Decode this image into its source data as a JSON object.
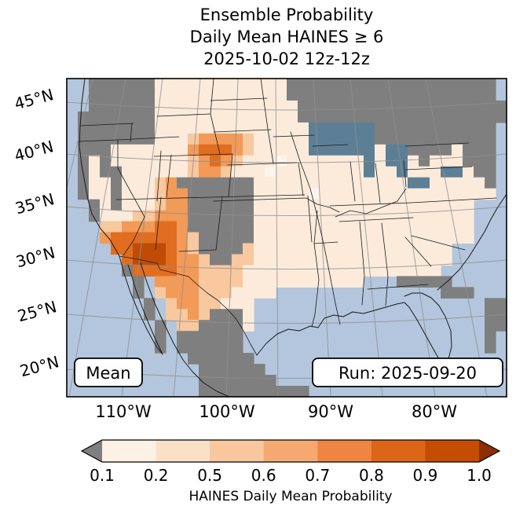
{
  "title": {
    "line1": "Ensemble Probability",
    "line2": "Daily Mean HAINES ≥ 6",
    "line3": "2025-10-02 12z-12z"
  },
  "map": {
    "mean_label": "Mean",
    "run_label": "Run: 2025-09-20",
    "lat_ticks": [
      "45°N",
      "40°N",
      "35°N",
      "30°N",
      "25°N",
      "20°N"
    ],
    "lon_ticks": [
      "110°W",
      "100°W",
      "90°W",
      "80°W"
    ]
  },
  "colorbar": {
    "label": "HAINES Daily Mean Probability",
    "tick_labels": [
      "0.1",
      "0.2",
      "0.5",
      "0.6",
      "0.7",
      "0.8",
      "0.9",
      "1.0"
    ],
    "segment_colors": [
      "#fdf0e4",
      "#fbe0c8",
      "#f8c79e",
      "#f5a971",
      "#ee8541",
      "#dd6517",
      "#c44c03"
    ],
    "under_color": "#7f7f7f",
    "over_color": "#8c2d04"
  },
  "chart_data": {
    "type": "heatmap",
    "title": "Ensemble Probability Daily Mean HAINES ≥ 6 (2025-10-02 12z-12z)",
    "statistic": "Mean",
    "model_run": "2025-09-20",
    "valid_period": "2025-10-02 12z-12z",
    "variable": "HAINES Daily Mean Probability",
    "threshold": 6,
    "colorbar_ticks": [
      0.1,
      0.2,
      0.5,
      0.6,
      0.7,
      0.8,
      0.9,
      1.0
    ],
    "lat_tick_values": [
      45,
      40,
      35,
      30,
      25,
      20
    ],
    "lon_tick_values": [
      110,
      100,
      90,
      80
    ],
    "legend_position": "bottom",
    "grid": {
      "legend": {
        ".": "ocean",
        "g": "no data / masked",
        "L": "lake",
        "c": "probability 0.1-0.2",
        "w": "probability 0.1-0.2 (pale)",
        "1": "probability 0.5-0.6",
        "2": "probability 0.6-0.7",
        "3": "probability 0.7-0.9",
        "4": "probability 0.9-1.0"
      },
      "palette": {
        ".": "#b3c6dd",
        "g": "#7f7f7f",
        "L": "#5c7f95",
        "c": "#fcebdb",
        "w": "#fdf5ec",
        "1": "#f8c89f",
        "2": "#f29a57",
        "3": "#e06d20",
        "4": "#bf4c06"
      },
      "rows": [
        "..ggggggccccccccccccggggggggggggggggggg.",
        "..ggggggccccccccccccggggggggggggggggggg.",
        "..ggggggcccccccccccccggggggggggggggggggg",
        ".gggggggcccccccccccccggggggggggggggggggg",
        ".gggggggcccccccccccc ccLLLLLLggggggggggg.",
        ".gggggggccc122221cccccLLLLLLggggggggggg.",
        ".gggccccccc233321cccccLLLLLLcLLggggcggg.",
        ".gcgccccccc12321cccwcccccccLcLLcgcccggg.",
        ".gcggcccccc1221cccwccccccccLccLcccLLcgg.",
        ".gccgccc12gggggggccccccccccccccLLcccccg.",
        ".gccgccc122ggggggcccccwcccccccccccccccc.",
        "..gcgccc122ggggggcccccccccccccccccccc..",
        "..gccc11222ggggggcccccccccccccccccccc...",
        "...11222332ggggggcccccccccccccccccccc...",
        "...233333321gggggcccccccccccccccccccc...",
        "....33444321gggg1cccccccccccccccccc....",
        ".....34443221gg11cccccccccccccccccc....",
        ".....g3333221111cccccccccccccccccc.....",
        "......g.22221111ccccccccccc...ggggg.....",
        "......g.1222111cccc...............ggg.....",
        ".......g.12211ccc.....................gg......",
        ".......g.1121gggc.....................gg......",
        "........g.11ggggc.....................gg.....",
        "........g.gggggg......................g.....",
        "........g.gggggg......................g.....",
        "...........gggggg.......................",
        "............gggggg......................",
        "............ggggggg.....................",
        "............gggggggggg.................."
      ],
      "rows_fixed": [
        "..ggggggcccccccccccc gggggggggg ggggggggg."
      ]
    }
  }
}
